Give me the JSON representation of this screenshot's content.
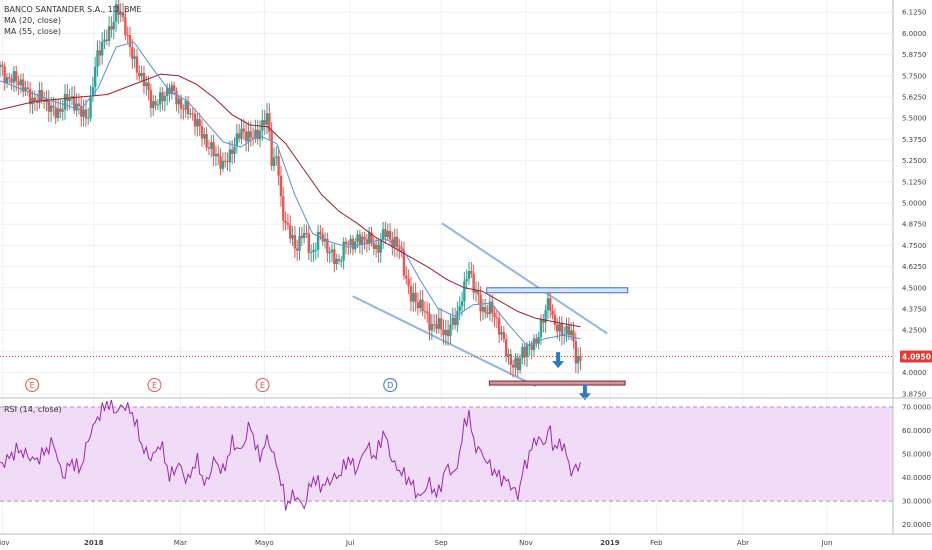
{
  "colors": {
    "up": "#26a69a",
    "down": "#ef5350",
    "ma20": "#5b8fd6",
    "ma55": "#9e1f2c",
    "channel": "#90b4e6",
    "resistance_fill": "#d6e4f8",
    "resistance_edge": "#3d6fcf",
    "support_fill": "#c9989d",
    "support_edge": "#8c1f2a",
    "arrow": "#2f78c4",
    "rsi_line": "#9c27b0",
    "rsi_band": "#f1dcf7",
    "price_line": "#e53935",
    "grid": "#eef0f3"
  },
  "legend": {
    "title": "BANCO SANTANDER S.A., 1D, BME",
    "ma20": "MA (20, close)",
    "ma55": "MA (55, close)",
    "rsi": "RSI (14, close)"
  },
  "current_price": "4.0950",
  "chart_data": {
    "type": "candlestick",
    "ylim": [
      3.85,
      6.15
    ],
    "y_ticks": [
      "6.1250",
      "6.0000",
      "5.8750",
      "5.7500",
      "5.6250",
      "5.5000",
      "5.3750",
      "5.2500",
      "5.1250",
      "5.0000",
      "4.8750",
      "4.7500",
      "4.6250",
      "4.5000",
      "4.3750",
      "4.2500",
      "4.1250",
      "4.0000",
      "3.8750"
    ],
    "x_ticks": [
      {
        "label": "Nov",
        "x": 0.3
      },
      {
        "label": "2018",
        "x": 10.5,
        "bold": true
      },
      {
        "label": "Mar",
        "x": 20.2
      },
      {
        "label": "Mayo",
        "x": 29.6
      },
      {
        "label": "Jul",
        "x": 39.2
      },
      {
        "label": "Sep",
        "x": 49.4
      },
      {
        "label": "Nov",
        "x": 58.9
      },
      {
        "label": "2019",
        "x": 68.3,
        "bold": true
      },
      {
        "label": "Feb",
        "x": 73.5
      },
      {
        "label": "Abr",
        "x": 83.2
      },
      {
        "label": "Jun",
        "x": 92.6
      }
    ],
    "close_path": [
      [
        0,
        5.8
      ],
      [
        2,
        5.7
      ],
      [
        4,
        5.62
      ],
      [
        6,
        5.55
      ],
      [
        8,
        5.6
      ],
      [
        10,
        5.52
      ],
      [
        11,
        5.9
      ],
      [
        12,
        6.0
      ],
      [
        13,
        6.12
      ],
      [
        14,
        6.05
      ],
      [
        15,
        5.85
      ],
      [
        16,
        5.7
      ],
      [
        17,
        5.6
      ],
      [
        18,
        5.62
      ],
      [
        19,
        5.65
      ],
      [
        20,
        5.62
      ],
      [
        21,
        5.55
      ],
      [
        22,
        5.45
      ],
      [
        23,
        5.4
      ],
      [
        24,
        5.28
      ],
      [
        25,
        5.2
      ],
      [
        26,
        5.35
      ],
      [
        27,
        5.4
      ],
      [
        28,
        5.38
      ],
      [
        29,
        5.45
      ],
      [
        30,
        5.48
      ],
      [
        30.5,
        5.2
      ],
      [
        31,
        5.3
      ],
      [
        31.5,
        5.0
      ],
      [
        32,
        4.9
      ],
      [
        33,
        4.7
      ],
      [
        34,
        4.85
      ],
      [
        35,
        4.7
      ],
      [
        36,
        4.8
      ],
      [
        37,
        4.72
      ],
      [
        38,
        4.65
      ],
      [
        39,
        4.76
      ],
      [
        40,
        4.8
      ],
      [
        41,
        4.78
      ],
      [
        42,
        4.72
      ],
      [
        43,
        4.85
      ],
      [
        44,
        4.75
      ],
      [
        45,
        4.7
      ],
      [
        46,
        4.45
      ],
      [
        47,
        4.38
      ],
      [
        48,
        4.32
      ],
      [
        49,
        4.28
      ],
      [
        50,
        4.2
      ],
      [
        51,
        4.35
      ],
      [
        52,
        4.48
      ],
      [
        52.5,
        4.6
      ],
      [
        53,
        4.5
      ],
      [
        54,
        4.4
      ],
      [
        55,
        4.35
      ],
      [
        56,
        4.25
      ],
      [
        57,
        4.1
      ],
      [
        58,
        4.0
      ],
      [
        58.5,
        4.12
      ],
      [
        59,
        4.15
      ],
      [
        60,
        4.2
      ],
      [
        61,
        4.3
      ],
      [
        61.5,
        4.45
      ],
      [
        62,
        4.3
      ],
      [
        63,
        4.25
      ],
      [
        64,
        4.2
      ],
      [
        64.5,
        4.1
      ],
      [
        65,
        4.095
      ]
    ],
    "ma20": [
      [
        0,
        5.72
      ],
      [
        3,
        5.66
      ],
      [
        6,
        5.6
      ],
      [
        9,
        5.55
      ],
      [
        11,
        5.68
      ],
      [
        13,
        5.92
      ],
      [
        15,
        5.95
      ],
      [
        17,
        5.8
      ],
      [
        19,
        5.66
      ],
      [
        21,
        5.6
      ],
      [
        23,
        5.48
      ],
      [
        25,
        5.36
      ],
      [
        27,
        5.33
      ],
      [
        29,
        5.4
      ],
      [
        31,
        5.35
      ],
      [
        33,
        5.05
      ],
      [
        35,
        4.82
      ],
      [
        37,
        4.77
      ],
      [
        39,
        4.74
      ],
      [
        41,
        4.76
      ],
      [
        43,
        4.79
      ],
      [
        45,
        4.74
      ],
      [
        47,
        4.55
      ],
      [
        49,
        4.38
      ],
      [
        51,
        4.33
      ],
      [
        53,
        4.4
      ],
      [
        55,
        4.41
      ],
      [
        57,
        4.28
      ],
      [
        59,
        4.16
      ],
      [
        61,
        4.2
      ],
      [
        63,
        4.22
      ],
      [
        65,
        4.2
      ]
    ],
    "ma55": [
      [
        0,
        5.55
      ],
      [
        4,
        5.6
      ],
      [
        8,
        5.62
      ],
      [
        12,
        5.64
      ],
      [
        16,
        5.72
      ],
      [
        18,
        5.76
      ],
      [
        20,
        5.75
      ],
      [
        22,
        5.7
      ],
      [
        24,
        5.62
      ],
      [
        26,
        5.52
      ],
      [
        28,
        5.46
      ],
      [
        30,
        5.45
      ],
      [
        32,
        5.35
      ],
      [
        34,
        5.2
      ],
      [
        36,
        5.05
      ],
      [
        38,
        4.95
      ],
      [
        40,
        4.88
      ],
      [
        42,
        4.8
      ],
      [
        44,
        4.74
      ],
      [
        46,
        4.68
      ],
      [
        48,
        4.62
      ],
      [
        50,
        4.55
      ],
      [
        52,
        4.5
      ],
      [
        54,
        4.48
      ],
      [
        56,
        4.42
      ],
      [
        58,
        4.36
      ],
      [
        60,
        4.32
      ],
      [
        62,
        4.3
      ],
      [
        64,
        4.28
      ],
      [
        65,
        4.27
      ]
    ],
    "rsi": [
      [
        0,
        45
      ],
      [
        2,
        52
      ],
      [
        4,
        47
      ],
      [
        6,
        55
      ],
      [
        7,
        40
      ],
      [
        8,
        47
      ],
      [
        9,
        43
      ],
      [
        10,
        58
      ],
      [
        11,
        66
      ],
      [
        12,
        72
      ],
      [
        13,
        68
      ],
      [
        14,
        71
      ],
      [
        15,
        66
      ],
      [
        16,
        52
      ],
      [
        17,
        48
      ],
      [
        18,
        55
      ],
      [
        19,
        40
      ],
      [
        20,
        46
      ],
      [
        21,
        38
      ],
      [
        22,
        48
      ],
      [
        23,
        36
      ],
      [
        24,
        48
      ],
      [
        25,
        42
      ],
      [
        26,
        55
      ],
      [
        27,
        51
      ],
      [
        28,
        63
      ],
      [
        29,
        48
      ],
      [
        30,
        57
      ],
      [
        31,
        45
      ],
      [
        31.5,
        38
      ],
      [
        32,
        28
      ],
      [
        33,
        33
      ],
      [
        34,
        27
      ],
      [
        35,
        40
      ],
      [
        36,
        36
      ],
      [
        37,
        39
      ],
      [
        38,
        41
      ],
      [
        39,
        48
      ],
      [
        40,
        43
      ],
      [
        41,
        54
      ],
      [
        42,
        48
      ],
      [
        43,
        60
      ],
      [
        44,
        46
      ],
      [
        45,
        42
      ],
      [
        46,
        38
      ],
      [
        47,
        31
      ],
      [
        48,
        38
      ],
      [
        49,
        32
      ],
      [
        50,
        45
      ],
      [
        51,
        41
      ],
      [
        52,
        62
      ],
      [
        52.5,
        68
      ],
      [
        53,
        55
      ],
      [
        54,
        50
      ],
      [
        55,
        44
      ],
      [
        56,
        40
      ],
      [
        57,
        38
      ],
      [
        58,
        32
      ],
      [
        58.5,
        42
      ],
      [
        59,
        47
      ],
      [
        60,
        57
      ],
      [
        61,
        54
      ],
      [
        61.5,
        62
      ],
      [
        62,
        52
      ],
      [
        63,
        55
      ],
      [
        64,
        42
      ],
      [
        65,
        46
      ]
    ],
    "rsi_ylim": [
      16,
      73
    ],
    "rsi_ticks": [
      "70.0000",
      "60.0000",
      "50.0000",
      "40.0000",
      "30.0000",
      "20.0000"
    ],
    "rsi_band": [
      30,
      70
    ],
    "channel_upper": [
      [
        49.5,
        4.88
      ],
      [
        68,
        4.23
      ]
    ],
    "channel_lower": [
      [
        39.5,
        4.45
      ],
      [
        60,
        3.92
      ]
    ],
    "resistance_box": {
      "x0": 54.5,
      "x1": 70.3,
      "y0": 4.48,
      "y1": 4.5
    },
    "support_box": {
      "x0": 54.8,
      "x1": 70,
      "y0": 3.93,
      "y1": 3.95
    },
    "event_markers": [
      {
        "label": "E",
        "x": 3.6
      },
      {
        "label": "E",
        "x": 17.3
      },
      {
        "label": "E",
        "x": 29.4
      },
      {
        "label": "D",
        "x": 43.7
      }
    ],
    "arrows": [
      {
        "x": 62.5,
        "y": 4.05
      },
      {
        "x": 65.5,
        "y": 3.86
      }
    ]
  }
}
